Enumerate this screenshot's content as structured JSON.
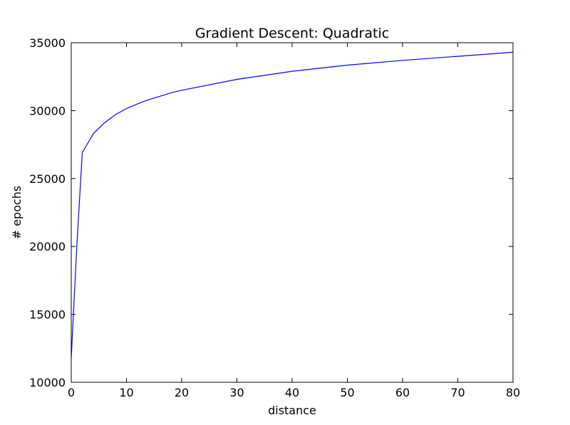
{
  "chart_data": {
    "type": "line",
    "title": "Gradient Descent: Quadratic",
    "xlabel": "distance",
    "ylabel": "# epochs",
    "xlim": [
      0,
      80
    ],
    "ylim": [
      10000,
      35000
    ],
    "xticks": [
      0,
      10,
      20,
      30,
      40,
      50,
      60,
      70,
      80
    ],
    "yticks": [
      10000,
      15000,
      20000,
      25000,
      30000,
      35000
    ],
    "grid": false,
    "legend": false,
    "series": [
      {
        "color": "#0000ff",
        "x": [
          0,
          1,
          2,
          4,
          6,
          8,
          10,
          12,
          14,
          16,
          18,
          20,
          30,
          40,
          50,
          60,
          70,
          80
        ],
        "y": [
          11800,
          20000,
          26900,
          28300,
          29100,
          29700,
          30150,
          30500,
          30800,
          31050,
          31300,
          31500,
          32300,
          32900,
          33350,
          33700,
          34000,
          34300
        ]
      }
    ]
  }
}
